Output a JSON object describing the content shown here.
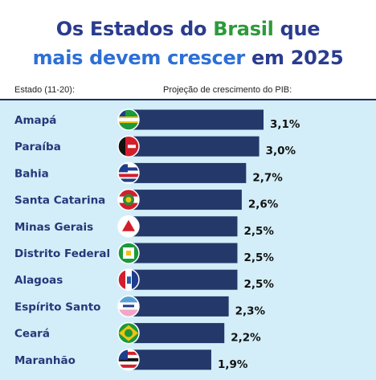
{
  "title": {
    "line1_a": "Os Estados do ",
    "line1_b": "Brasil",
    "line1_c": " que",
    "line2_a": "mais devem crescer",
    "line2_b": " em 2025"
  },
  "headers": {
    "state": "Estado (11-20):",
    "projection": "Projeção de crescimento do PIB:"
  },
  "colors": {
    "bar": "#24386a",
    "panel": "#d3eef8",
    "label": "#25387a"
  },
  "chart_data": {
    "type": "bar",
    "orientation": "horizontal",
    "categories": [
      "Amapá",
      "Paraíba",
      "Bahia",
      "Santa Catarina",
      "Minas Gerais",
      "Distrito Federal",
      "Alagoas",
      "Espírito Santo",
      "Ceará",
      "Maranhão"
    ],
    "values": [
      3.1,
      3.0,
      2.7,
      2.6,
      2.5,
      2.5,
      2.5,
      2.3,
      2.2,
      1.9
    ],
    "value_labels": [
      "3,1%",
      "3,0%",
      "2,7%",
      "2,6%",
      "2,5%",
      "2,5%",
      "2,5%",
      "2,3%",
      "2,2%",
      "1,9%"
    ],
    "flags": [
      "amapa-flag-icon",
      "paraiba-flag-icon",
      "bahia-flag-icon",
      "santa-catarina-flag-icon",
      "minas-gerais-flag-icon",
      "distrito-federal-flag-icon",
      "alagoas-flag-icon",
      "espirito-santo-flag-icon",
      "ceara-flag-icon",
      "maranhao-flag-icon"
    ],
    "xlim": [
      0,
      3.1
    ]
  }
}
